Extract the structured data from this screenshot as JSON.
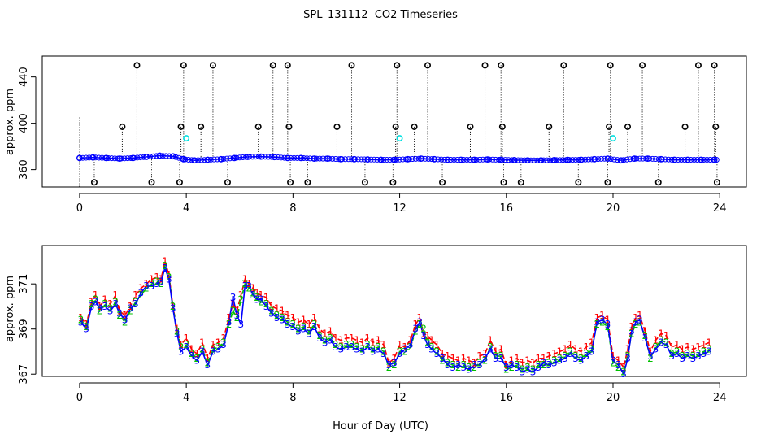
{
  "chart_data": [
    {
      "type": "scatter",
      "title": "SPL_131112  CO2 Timeseries",
      "xlabel": "",
      "ylabel": "approx. ppm",
      "xlim": [
        -1.4,
        25
      ],
      "ylim": [
        345,
        458
      ],
      "xticks": [
        0,
        4,
        8,
        12,
        16,
        20,
        24
      ],
      "xtick_labels": [
        "0",
        "4",
        "8",
        "12",
        "16",
        "20",
        "24"
      ],
      "yticks": [
        360,
        400,
        440
      ],
      "ytick_labels": [
        "360",
        "400",
        "440"
      ],
      "series": [
        {
          "name": "CO2 (blue)",
          "color": "#0000ff",
          "x": [
            0,
            0.5,
            1,
            1.5,
            2,
            2.5,
            3,
            3.5,
            3.9,
            4.3,
            4.8,
            5.3,
            5.8,
            6.3,
            6.8,
            7.3,
            7.8,
            8.3,
            8.8,
            9.3,
            9.8,
            10.3,
            10.8,
            11.3,
            11.8,
            12.3,
            12.8,
            13.3,
            13.8,
            14.3,
            14.8,
            15.3,
            15.8,
            16.3,
            16.8,
            17.3,
            17.8,
            18.3,
            18.8,
            19.3,
            19.8,
            20.3,
            20.8,
            21.3,
            21.8,
            22.3,
            22.8,
            23.3,
            23.8
          ],
          "y": [
            370,
            370.5,
            370,
            369.5,
            370,
            371,
            372,
            371.5,
            369,
            368,
            368.5,
            369,
            370,
            371,
            371.2,
            370.8,
            370,
            370,
            369.5,
            369.5,
            369,
            369,
            368.8,
            368.5,
            368.5,
            369,
            369.5,
            369,
            368.5,
            368.5,
            368.5,
            368.8,
            368.5,
            368.2,
            368,
            368,
            368.2,
            368.4,
            368.5,
            369,
            369.5,
            368,
            369.5,
            369.5,
            369,
            368.5,
            368.5,
            368.5,
            368.5
          ]
        },
        {
          "name": "high outliers",
          "color": "#000000",
          "x": [
            2.15,
            3.9,
            5.0,
            7.25,
            7.8,
            10.2,
            11.9,
            13.05,
            15.2,
            15.8,
            18.15,
            19.9,
            21.1,
            23.2,
            23.8
          ],
          "y": [
            450,
            450,
            450,
            450,
            450,
            450,
            450,
            450,
            450,
            450,
            450,
            450,
            450,
            450,
            450
          ]
        },
        {
          "name": "mid outliers",
          "color": "#000000",
          "x": [
            1.6,
            3.8,
            4.55,
            6.7,
            7.85,
            9.65,
            11.85,
            12.55,
            14.65,
            15.85,
            17.6,
            19.85,
            20.55,
            22.7,
            23.85
          ],
          "y": [
            397,
            397,
            397,
            397,
            397,
            397,
            397,
            397,
            397,
            397,
            397,
            397,
            397,
            397,
            397
          ]
        },
        {
          "name": "low outliers",
          "color": "#000000",
          "x": [
            0.55,
            2.7,
            3.75,
            5.55,
            7.9,
            8.55,
            10.7,
            11.75,
            13.6,
            15.9,
            16.55,
            18.7,
            19.8,
            21.7,
            23.9
          ],
          "y": [
            349,
            349,
            349,
            349,
            349,
            349,
            349,
            349,
            349,
            349,
            349,
            349,
            349,
            349,
            349
          ]
        },
        {
          "name": "cyan points",
          "color": "#00e0e0",
          "x": [
            4.0,
            12.0,
            20.0
          ],
          "y": [
            387,
            387,
            387
          ]
        }
      ]
    },
    {
      "type": "line",
      "title": "",
      "xlabel": "Hour of Day (UTC)",
      "ylabel": "approx. ppm",
      "xlim": [
        -1.4,
        25
      ],
      "ylim": [
        366.9,
        372.7
      ],
      "xticks": [
        0,
        4,
        8,
        12,
        16,
        20,
        24
      ],
      "xtick_labels": [
        "0",
        "4",
        "8",
        "12",
        "16",
        "20",
        "24"
      ],
      "yticks": [
        367,
        369,
        371
      ],
      "ytick_labels": [
        "367",
        "369",
        "371"
      ],
      "x": [
        0.05,
        0.25,
        0.45,
        0.6,
        0.75,
        0.95,
        1.15,
        1.35,
        1.5,
        1.7,
        1.9,
        2.1,
        2.3,
        2.5,
        2.7,
        2.9,
        3.05,
        3.2,
        3.35,
        3.5,
        3.65,
        3.8,
        4.0,
        4.2,
        4.4,
        4.6,
        4.8,
        5.0,
        5.2,
        5.4,
        5.6,
        5.75,
        5.9,
        6.05,
        6.2,
        6.35,
        6.5,
        6.65,
        6.8,
        7.0,
        7.2,
        7.4,
        7.6,
        7.8,
        8.0,
        8.2,
        8.4,
        8.6,
        8.8,
        9.0,
        9.2,
        9.4,
        9.6,
        9.8,
        10.0,
        10.2,
        10.4,
        10.6,
        10.8,
        11.0,
        11.2,
        11.4,
        11.6,
        11.8,
        12.0,
        12.2,
        12.4,
        12.6,
        12.75,
        12.9,
        13.05,
        13.2,
        13.4,
        13.6,
        13.8,
        14.0,
        14.2,
        14.4,
        14.6,
        14.8,
        15.0,
        15.2,
        15.4,
        15.6,
        15.8,
        16.0,
        16.2,
        16.4,
        16.6,
        16.8,
        17.0,
        17.2,
        17.4,
        17.6,
        17.8,
        18.0,
        18.2,
        18.4,
        18.6,
        18.8,
        19.0,
        19.2,
        19.4,
        19.6,
        19.8,
        20.0,
        20.2,
        20.4,
        20.55,
        20.7,
        20.85,
        21.0,
        21.2,
        21.4,
        21.6,
        21.8,
        22.0,
        22.2,
        22.4,
        22.6,
        22.8,
        23.0,
        23.2,
        23.4,
        23.6
      ],
      "series": [
        {
          "name": "1",
          "color": "#ff0000",
          "y": [
            369.5,
            369.2,
            370.2,
            370.5,
            370.0,
            370.3,
            370.1,
            370.5,
            369.8,
            369.6,
            370.0,
            370.5,
            370.8,
            371.0,
            371.2,
            371.3,
            371.2,
            372.0,
            371.4,
            370.0,
            369.0,
            368.3,
            368.6,
            368.1,
            367.9,
            368.4,
            367.7,
            368.3,
            368.4,
            368.6,
            369.5,
            370.1,
            369.8,
            370.5,
            371.2,
            371.0,
            370.8,
            370.6,
            370.5,
            370.4,
            370.0,
            369.9,
            369.8,
            369.6,
            369.5,
            369.3,
            369.4,
            369.2,
            369.5,
            369.0,
            368.8,
            368.9,
            368.6,
            368.5,
            368.6,
            368.6,
            368.5,
            368.4,
            368.6,
            368.4,
            368.5,
            368.3,
            367.5,
            367.7,
            368.3,
            368.2,
            368.5,
            369.2,
            369.5,
            368.8,
            368.7,
            368.5,
            368.3,
            367.9,
            367.8,
            367.7,
            367.6,
            367.7,
            367.6,
            367.5,
            367.8,
            367.9,
            368.5,
            368.0,
            368.1,
            367.4,
            367.6,
            367.7,
            367.5,
            367.6,
            367.5,
            367.7,
            367.7,
            367.8,
            367.9,
            368.0,
            368.1,
            368.3,
            368.1,
            368.0,
            368.2,
            368.4,
            369.5,
            369.6,
            369.4,
            367.8,
            367.6,
            367.3,
            368.1,
            369.1,
            369.5,
            369.6,
            368.9,
            368.0,
            368.5,
            368.8,
            368.7,
            368.2,
            368.3,
            368.1,
            368.2,
            368.1,
            368.2,
            368.3,
            368.4
          ]
        },
        {
          "name": "2",
          "color": "#00c000",
          "y": [
            369.4,
            369.1,
            370.1,
            370.3,
            369.8,
            370.1,
            369.9,
            370.2,
            369.6,
            369.3,
            369.8,
            370.2,
            370.5,
            370.8,
            371.0,
            371.1,
            371.0,
            371.8,
            371.3,
            370.0,
            368.9,
            368.2,
            368.3,
            367.9,
            367.7,
            368.1,
            367.5,
            368.1,
            368.2,
            368.4,
            369.2,
            369.8,
            369.5,
            370.3,
            371.0,
            370.8,
            370.6,
            370.4,
            370.2,
            370.1,
            369.8,
            369.6,
            369.5,
            369.3,
            369.2,
            369.0,
            369.1,
            368.9,
            369.2,
            368.7,
            368.5,
            368.6,
            368.3,
            368.2,
            368.3,
            368.3,
            368.2,
            368.1,
            368.3,
            368.1,
            368.2,
            368.0,
            367.3,
            367.4,
            368.0,
            368.0,
            368.2,
            368.9,
            369.2,
            369.0,
            368.4,
            368.2,
            368.0,
            367.6,
            367.5,
            367.4,
            367.3,
            367.4,
            367.3,
            367.3,
            367.5,
            367.6,
            368.2,
            367.8,
            367.8,
            367.2,
            367.3,
            367.4,
            367.2,
            367.3,
            367.2,
            367.4,
            367.4,
            367.5,
            367.6,
            367.7,
            367.8,
            368.0,
            367.8,
            367.7,
            367.9,
            368.1,
            369.2,
            369.3,
            369.1,
            367.5,
            367.3,
            367.1,
            367.8,
            368.8,
            369.2,
            369.3,
            368.7,
            367.7,
            368.2,
            368.5,
            368.4,
            367.9,
            368.0,
            367.8,
            367.9,
            367.8,
            367.9,
            368.0,
            368.1
          ]
        },
        {
          "name": "3",
          "color": "#0000ff",
          "y": [
            369.3,
            369.0,
            370.0,
            370.2,
            369.9,
            370.0,
            369.8,
            370.1,
            369.7,
            369.4,
            369.9,
            370.1,
            370.6,
            370.9,
            370.9,
            371.0,
            371.1,
            371.7,
            371.2,
            369.9,
            368.8,
            368.0,
            368.2,
            367.8,
            367.6,
            368.0,
            367.4,
            368.0,
            368.1,
            368.3,
            369.3,
            370.4,
            369.6,
            369.2,
            370.9,
            370.9,
            370.5,
            370.3,
            370.3,
            370.0,
            369.7,
            369.5,
            369.4,
            369.2,
            369.1,
            368.9,
            369.0,
            368.8,
            369.1,
            368.6,
            368.4,
            368.5,
            368.2,
            368.1,
            368.2,
            368.2,
            368.1,
            368.0,
            368.2,
            368.0,
            368.1,
            367.9,
            367.4,
            367.5,
            367.9,
            368.1,
            368.3,
            369.0,
            369.3,
            368.7,
            368.3,
            368.1,
            367.9,
            367.7,
            367.4,
            367.3,
            367.4,
            367.3,
            367.2,
            367.4,
            367.4,
            367.7,
            368.1,
            367.7,
            367.7,
            367.3,
            367.4,
            367.3,
            367.1,
            367.2,
            367.1,
            367.3,
            367.5,
            367.4,
            367.5,
            367.6,
            367.7,
            367.9,
            367.7,
            367.6,
            367.8,
            368.0,
            369.3,
            369.4,
            369.2,
            367.6,
            367.4,
            367.0,
            367.7,
            368.9,
            369.3,
            369.4,
            368.6,
            367.8,
            368.1,
            368.4,
            368.3,
            367.8,
            367.9,
            367.7,
            367.8,
            367.7,
            367.8,
            367.9,
            368.0
          ]
        }
      ]
    }
  ]
}
